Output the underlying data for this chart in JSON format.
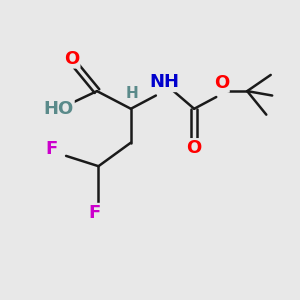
{
  "bg_color": "#e8e8e8",
  "bond_color": "#1a1a1a",
  "bond_width": 1.8,
  "atom_colors": {
    "O": "#ff0000",
    "N": "#0000cc",
    "F": "#cc00cc",
    "H": "#5a8a8a",
    "C": "#1a1a1a"
  },
  "font_size_atom": 13,
  "font_size_small": 11,
  "font_size_tbu": 11
}
